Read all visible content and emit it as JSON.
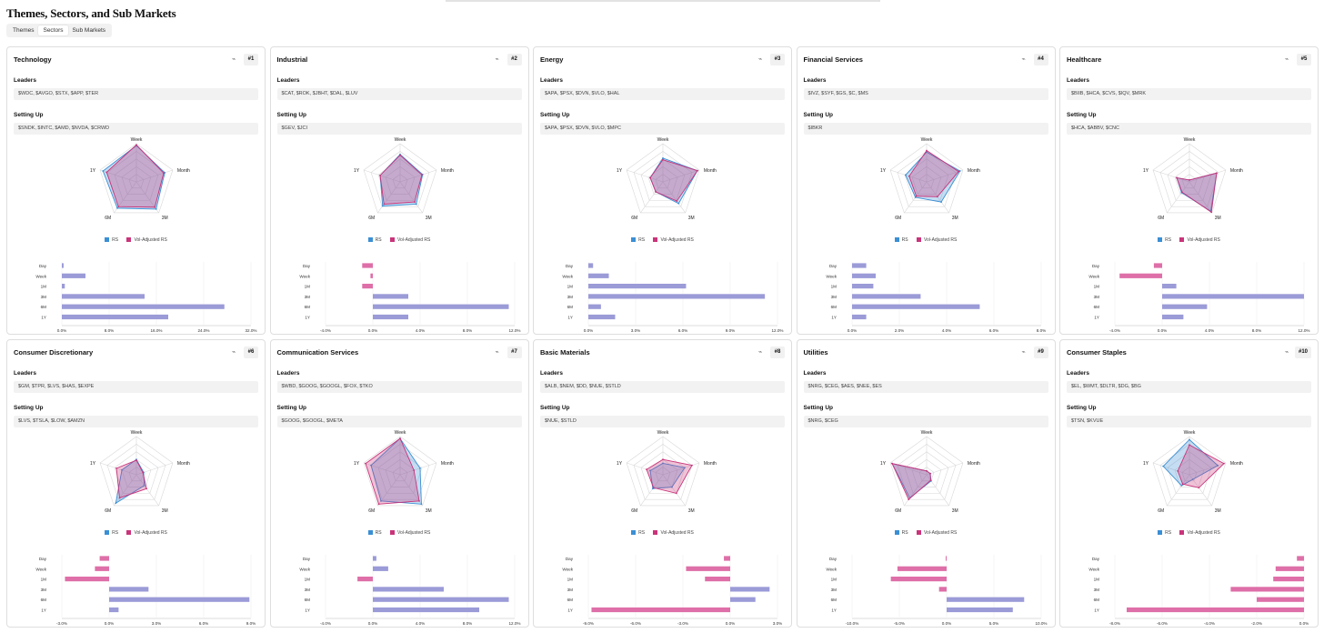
{
  "page": {
    "title": "Themes, Sectors, and Sub Markets",
    "tabs": [
      "Themes",
      "Sectors",
      "Sub Markets"
    ]
  },
  "labels": {
    "leaders": "Leaders",
    "setting_up": "Setting Up",
    "legend_rs": "RS",
    "legend_vol": "Vol-Adjusted RS",
    "radar_axes": [
      "Week",
      "Month",
      "3M",
      "6M",
      "1Y"
    ],
    "bar_categories": [
      "Day",
      "Week",
      "1M",
      "3M",
      "6M",
      "1Y"
    ],
    "chart_icon": "⌁"
  },
  "colors": {
    "rs": "#3b8fd4",
    "vol": "#c9347a",
    "bar_pos": "#9b9bd8",
    "bar_neg": "#de6fa8"
  },
  "chart_data": [
    {
      "type": "radar+bar",
      "title": "Technology",
      "rank": "#1",
      "leaders": "$WDC, $AVGO, $STX, $APP, $TER",
      "setting_up": "$SNDK, $INTC, $AMD, $NVDA, $CRWD",
      "radar": {
        "rs": [
          0.95,
          0.78,
          0.88,
          0.85,
          0.92
        ],
        "vol": [
          0.97,
          0.75,
          0.82,
          0.8,
          0.82
        ]
      },
      "bars": [
        0.3,
        4,
        0.5,
        14,
        27.5,
        18
      ],
      "ticks": [
        "0.0%",
        "8.0%",
        "16.0%",
        "24.0%",
        "32.0%"
      ],
      "range": [
        0,
        32
      ]
    },
    {
      "type": "radar+bar",
      "title": "Industrial",
      "rank": "#2",
      "leaders": "$CAT, $ROK, $JBHT, $DAL, $LUV",
      "setting_up": "$GEV, $JCI",
      "radar": {
        "rs": [
          0.72,
          0.62,
          0.72,
          0.78,
          0.55
        ],
        "vol": [
          0.7,
          0.6,
          0.65,
          0.72,
          0.55
        ]
      },
      "bars": [
        -0.9,
        -0.2,
        -0.9,
        3,
        11.5,
        3
      ],
      "ticks": [
        "-4.0%",
        "0.0%",
        "4.0%",
        "8.0%",
        "12.0%"
      ],
      "range": [
        -4,
        12
      ]
    },
    {
      "type": "radar+bar",
      "title": "Energy",
      "rank": "#3",
      "leaders": "$APA, $PSX, $DVN, $VLO, $HAL",
      "setting_up": "$APA, $PSX, $DVN, $VLO, $MPC",
      "radar": {
        "rs": [
          0.62,
          0.95,
          0.7,
          0.32,
          0.35
        ],
        "vol": [
          0.58,
          0.95,
          0.62,
          0.32,
          0.35
        ]
      },
      "bars": [
        0.3,
        1.3,
        6.2,
        11.2,
        0.8,
        1.7
      ],
      "ticks": [
        "0.0%",
        "3.0%",
        "6.0%",
        "9.0%",
        "12.0%"
      ],
      "range": [
        0,
        12
      ]
    },
    {
      "type": "radar+bar",
      "title": "Financial Services",
      "rank": "#4",
      "leaders": "$IVZ, $SYF, $GS, $C, $MS",
      "setting_up": "$IBKR",
      "radar": {
        "rs": [
          0.78,
          0.92,
          0.65,
          0.5,
          0.58
        ],
        "vol": [
          0.82,
          0.88,
          0.48,
          0.46,
          0.48
        ]
      },
      "bars": [
        0.6,
        1,
        0.9,
        2.9,
        5.4,
        0.6
      ],
      "ticks": [
        "0.0%",
        "2.0%",
        "4.0%",
        "6.0%",
        "8.0%"
      ],
      "range": [
        0,
        8
      ]
    },
    {
      "type": "radar+bar",
      "title": "Healthcare",
      "rank": "#5",
      "leaders": "$BIIB, $HCA, $CVS, $IQV, $MRK",
      "setting_up": "$HCA, $ABBV, $CNC",
      "radar": {
        "rs": [
          0.05,
          0.75,
          0.95,
          0.35,
          0.35
        ],
        "vol": [
          0.05,
          0.75,
          0.98,
          0.33,
          0.35
        ]
      },
      "bars": [
        -0.7,
        -3.6,
        1.2,
        12,
        3.8,
        1.8
      ],
      "ticks": [
        "-4.0%",
        "0.0%",
        "4.0%",
        "8.0%",
        "12.0%"
      ],
      "range": [
        -4,
        12
      ]
    },
    {
      "type": "radar+bar",
      "title": "Consumer Discretionary",
      "rank": "#6",
      "leaders": "$GM, $TPR, $LVS, $HAS, $EXPE",
      "setting_up": "$LVS, $TSLA, $LOW, $AMZN",
      "radar": {
        "rs": [
          0.4,
          0.2,
          0.35,
          0.92,
          0.4
        ],
        "vol": [
          0.38,
          0.18,
          0.45,
          0.75,
          0.55
        ]
      },
      "bars": [
        -0.6,
        -0.9,
        -2.8,
        2.5,
        8.9,
        0.6
      ],
      "ticks": [
        "-3.0%",
        "0.0%",
        "3.0%",
        "6.0%",
        "9.0%"
      ],
      "range": [
        -3,
        9
      ]
    },
    {
      "type": "radar+bar",
      "title": "Communication Services",
      "rank": "#7",
      "leaders": "$WBD, $GOOG, $GOOGL, $FOX, $TKO",
      "setting_up": "$GOOG, $GOOGL, $META",
      "radar": {
        "rs": [
          0.95,
          0.55,
          0.95,
          0.85,
          0.8
        ],
        "vol": [
          0.95,
          0.38,
          0.85,
          0.95,
          0.95
        ]
      },
      "bars": [
        0.3,
        1.3,
        -1.3,
        6,
        11.5,
        9
      ],
      "ticks": [
        "-4.0%",
        "0.0%",
        "4.0%",
        "8.0%",
        "12.0%"
      ],
      "range": [
        -4,
        12
      ]
    },
    {
      "type": "radar+bar",
      "title": "Basic Materials",
      "rank": "#8",
      "leaders": "$ALB, $NEM, $DD, $NUE, $STLD",
      "setting_up": "$NUE, $STLD",
      "radar": {
        "rs": [
          0.3,
          0.6,
          0.4,
          0.45,
          0.35
        ],
        "vol": [
          0.4,
          0.8,
          0.6,
          0.42,
          0.45
        ]
      },
      "bars": [
        -0.4,
        -2.8,
        -1.6,
        2.5,
        1.6,
        -8.8
      ],
      "ticks": [
        "-9.0%",
        "-6.0%",
        "-3.0%",
        "0.0%",
        "3.0%"
      ],
      "range": [
        -9,
        3
      ]
    },
    {
      "type": "radar+bar",
      "title": "Utilities",
      "rank": "#9",
      "leaders": "$NRG, $CEG, $AES, $NEE, $ES",
      "setting_up": "$NRG, $CEG",
      "radar": {
        "rs": [
          0.1,
          0.1,
          0.2,
          0.75,
          0.95
        ],
        "vol": [
          0.1,
          0.1,
          0.18,
          0.8,
          0.95
        ]
      },
      "bars": [
        -0.1,
        -5.2,
        -5.9,
        -0.8,
        8.2,
        7
      ],
      "ticks": [
        "-10.0%",
        "-5.0%",
        "0.0%",
        "5.0%",
        "10.0%"
      ],
      "range": [
        -10,
        10
      ]
    },
    {
      "type": "radar+bar",
      "title": "Consumer Staples",
      "rank": "#10",
      "leaders": "$EL, $WMT, $DLTR, $DG, $BG",
      "setting_up": "$TSN, $KVUE",
      "radar": {
        "rs": [
          0.92,
          0.78,
          0.15,
          0.35,
          0.72
        ],
        "vol": [
          0.78,
          0.95,
          0.42,
          0.3,
          0.32
        ]
      },
      "bars": [
        -0.3,
        -1.2,
        -1.3,
        -3.1,
        -2,
        -7.5
      ],
      "ticks": [
        "-8.0%",
        "-6.0%",
        "-4.0%",
        "-2.0%",
        "0.0%"
      ],
      "range": [
        -8,
        0
      ]
    }
  ]
}
